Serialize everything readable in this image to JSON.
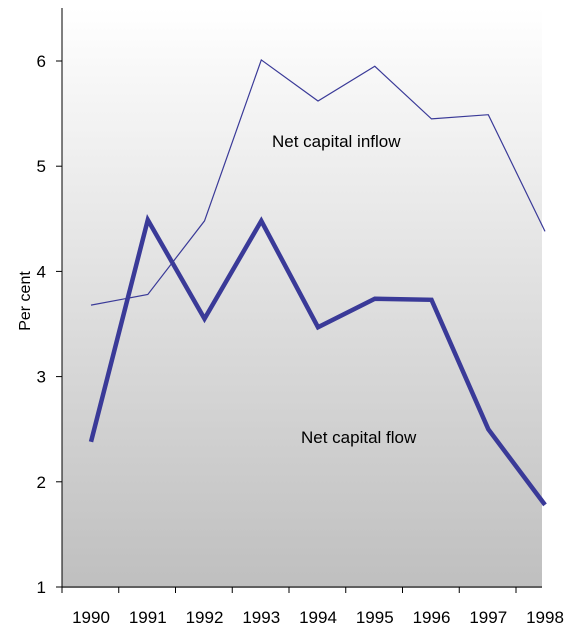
{
  "chart_data": {
    "type": "line",
    "title": "",
    "xlabel": "",
    "ylabel": "Per cent",
    "categories": [
      "1990",
      "1991",
      "1992",
      "1993",
      "1994",
      "1995",
      "1996",
      "1997",
      "1998"
    ],
    "ylim": [
      1,
      6.5
    ],
    "yticks": [
      "1",
      "2",
      "3",
      "4",
      "5",
      "6"
    ],
    "grid": false,
    "legend": "none",
    "series": [
      {
        "name": "Net capital inflow",
        "values": [
          3.68,
          3.78,
          4.48,
          6.01,
          5.62,
          5.95,
          5.45,
          5.49,
          4.38
        ],
        "color": "#3a3a98",
        "line": "thin"
      },
      {
        "name": "Net capital flow",
        "values": [
          2.38,
          4.49,
          3.55,
          4.48,
          3.47,
          3.74,
          3.73,
          2.5,
          1.78
        ],
        "color": "#3a3a98",
        "line": "thick"
      }
    ],
    "annotations": [
      "Net capital inflow",
      "Net capital flow"
    ],
    "background": "vertical gradient from white (top) to grey (bottom)"
  }
}
